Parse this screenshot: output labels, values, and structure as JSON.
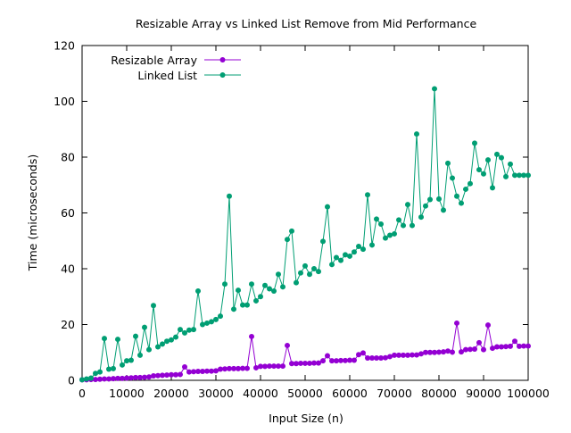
{
  "colors": {
    "resizable_array": "#9400d3",
    "linked_list": "#009e73",
    "axis": "#000000",
    "background": "#ffffff"
  },
  "chart_data": {
    "type": "line",
    "title": "Resizable Array vs Linked List Remove from Mid Performance",
    "xlabel": "Input Size (n)",
    "ylabel": "Time (microseconds)",
    "xlim": [
      0,
      100000
    ],
    "ylim": [
      0,
      120
    ],
    "xticks": [
      0,
      10000,
      20000,
      30000,
      40000,
      50000,
      60000,
      70000,
      80000,
      90000,
      100000
    ],
    "yticks": [
      0,
      20,
      40,
      60,
      80,
      100,
      120
    ],
    "xtick_labels": [
      "0",
      "10000",
      "20000",
      "30000",
      "40000",
      "50000",
      "60000",
      "70000",
      "80000",
      "90000",
      "100000"
    ],
    "ytick_labels": [
      "0",
      "20",
      "40",
      "60",
      "80",
      "100",
      "120"
    ],
    "grid": false,
    "legend_position": "top-left",
    "x": [
      0,
      1000,
      2000,
      3000,
      4000,
      5000,
      6000,
      7000,
      8000,
      9000,
      10000,
      11000,
      12000,
      13000,
      14000,
      15000,
      16000,
      17000,
      18000,
      19000,
      20000,
      21000,
      22000,
      23000,
      24000,
      25000,
      26000,
      27000,
      28000,
      29000,
      30000,
      31000,
      32000,
      33000,
      34000,
      35000,
      36000,
      37000,
      38000,
      39000,
      40000,
      41000,
      42000,
      43000,
      44000,
      45000,
      46000,
      47000,
      48000,
      49000,
      50000,
      51000,
      52000,
      53000,
      54000,
      55000,
      56000,
      57000,
      58000,
      59000,
      60000,
      61000,
      62000,
      63000,
      64000,
      65000,
      66000,
      67000,
      68000,
      69000,
      70000,
      71000,
      72000,
      73000,
      74000,
      75000,
      76000,
      77000,
      78000,
      79000,
      80000,
      81000,
      82000,
      83000,
      84000,
      85000,
      86000,
      87000,
      88000,
      89000,
      90000,
      91000,
      92000,
      93000,
      94000,
      95000,
      96000,
      97000,
      98000,
      99000,
      100000
    ],
    "series": [
      {
        "name": "Resizable Array",
        "color": "#9400d3",
        "values": [
          0.2,
          0.2,
          0.3,
          0.3,
          0.4,
          0.5,
          0.5,
          0.6,
          0.7,
          0.7,
          0.8,
          0.9,
          1.0,
          1.0,
          1.1,
          1.2,
          1.6,
          1.7,
          1.8,
          1.9,
          2.0,
          2.0,
          2.1,
          4.8,
          3.0,
          3.1,
          3.2,
          3.2,
          3.3,
          3.3,
          3.4,
          4.0,
          4.1,
          4.2,
          4.2,
          4.2,
          4.3,
          4.3,
          15.7,
          4.5,
          5.0,
          5.0,
          5.1,
          5.1,
          5.1,
          5.1,
          12.5,
          6.0,
          6.0,
          6.1,
          6.1,
          6.1,
          6.2,
          6.2,
          7.0,
          8.8,
          7.0,
          7.0,
          7.1,
          7.1,
          7.2,
          7.2,
          9.2,
          9.8,
          8.0,
          8.0,
          8.0,
          8.0,
          8.1,
          8.5,
          9.0,
          9.0,
          9.0,
          9.0,
          9.1,
          9.1,
          9.5,
          10.0,
          10.0,
          10.0,
          10.1,
          10.2,
          10.5,
          10.1,
          20.5,
          10.2,
          11.0,
          11.1,
          11.2,
          13.5,
          11.0,
          19.8,
          11.5,
          12.0,
          12.0,
          12.1,
          12.2,
          14.0,
          12.2,
          12.3,
          12.3
        ]
      },
      {
        "name": "Linked List",
        "color": "#009e73",
        "values": [
          0.2,
          0.5,
          0.8,
          2.5,
          3.0,
          15.0,
          4.0,
          4.2,
          14.7,
          5.5,
          7.0,
          7.2,
          15.8,
          9.0,
          19.0,
          11.0,
          26.8,
          12.0,
          13.0,
          14.0,
          14.5,
          15.5,
          18.2,
          17.0,
          18.0,
          18.2,
          32.0,
          20.0,
          20.5,
          21.0,
          21.8,
          23.0,
          34.5,
          66.0,
          25.5,
          32.3,
          27.0,
          27.0,
          34.5,
          28.5,
          30.0,
          34.0,
          32.8,
          32.0,
          38.0,
          33.5,
          50.5,
          53.5,
          35.0,
          38.5,
          41.0,
          38.0,
          40.0,
          39.0,
          49.8,
          62.2,
          41.5,
          44.0,
          43.0,
          45.0,
          44.5,
          46.0,
          48.0,
          47.0,
          66.5,
          48.5,
          57.8,
          56.0,
          51.0,
          52.0,
          52.5,
          57.5,
          55.5,
          63.0,
          55.5,
          88.3,
          58.5,
          62.5,
          64.8,
          104.5,
          65.0,
          61.0,
          77.8,
          72.5,
          66.0,
          63.5,
          68.5,
          70.5,
          85.0,
          75.5,
          74.0,
          79.0,
          69.0,
          81.0,
          79.8,
          73.0,
          77.5,
          73.5,
          73.5,
          73.5,
          73.5
        ]
      }
    ]
  }
}
